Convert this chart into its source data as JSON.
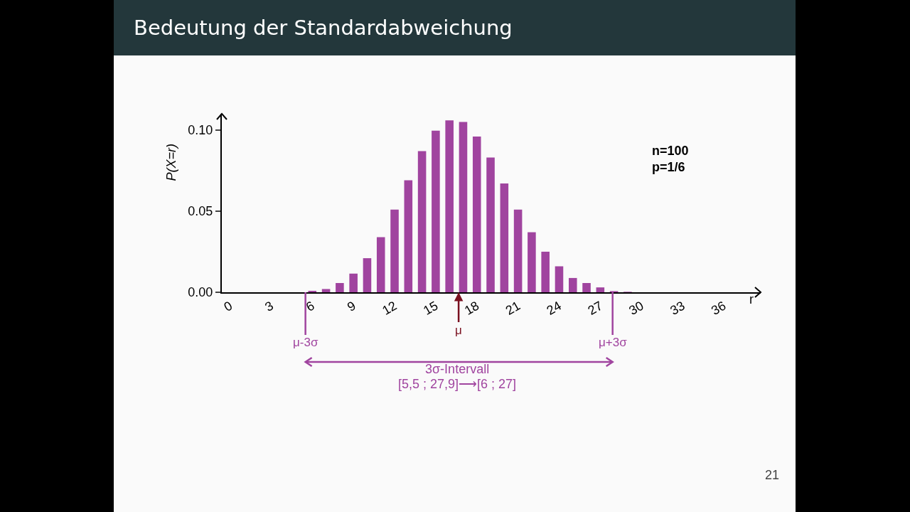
{
  "chart_data": {
    "type": "bar",
    "title": "Bedeutung der Standardabweichung",
    "xlabel": "r",
    "ylabel": "P(X=r)",
    "x": [
      6,
      7,
      8,
      9,
      10,
      11,
      12,
      13,
      14,
      15,
      16,
      17,
      18,
      19,
      20,
      21,
      22,
      23,
      24,
      25,
      26,
      27,
      28,
      29
    ],
    "values": [
      0.0009,
      0.002,
      0.0057,
      0.0115,
      0.021,
      0.034,
      0.051,
      0.069,
      0.087,
      0.0996,
      0.106,
      0.105,
      0.096,
      0.083,
      0.067,
      0.051,
      0.037,
      0.025,
      0.016,
      0.0088,
      0.0057,
      0.003,
      0.0007,
      0.0003
    ],
    "color": "#a0449f",
    "xlim": [
      -0.6,
      38.7
    ],
    "xticks": [
      0,
      3,
      6,
      9,
      12,
      15,
      18,
      21,
      24,
      27,
      30,
      33,
      36
    ],
    "ylim": [
      0,
      0.11
    ],
    "yticks": [
      {
        "value": 0,
        "label": "0.00"
      },
      {
        "value": 0.05,
        "label": "0.05"
      },
      {
        "value": 0.1,
        "label": "0.10"
      }
    ],
    "ref_lines": [
      {
        "axis": "x",
        "value": 5.5,
        "label": "μ-3σ",
        "color": "#a0449f"
      },
      {
        "axis": "x",
        "value": 27.9,
        "label": "μ+3σ",
        "color": "#a0449f"
      }
    ],
    "annotations": [
      {
        "text": "μ",
        "x": 16.67,
        "y": 0
      },
      "n=100\np=1/6",
      "3σ-Intervall",
      "[5,5 ; 27,9]⟶[6 ; 27]",
      "21"
    ],
    "grid": false
  }
}
